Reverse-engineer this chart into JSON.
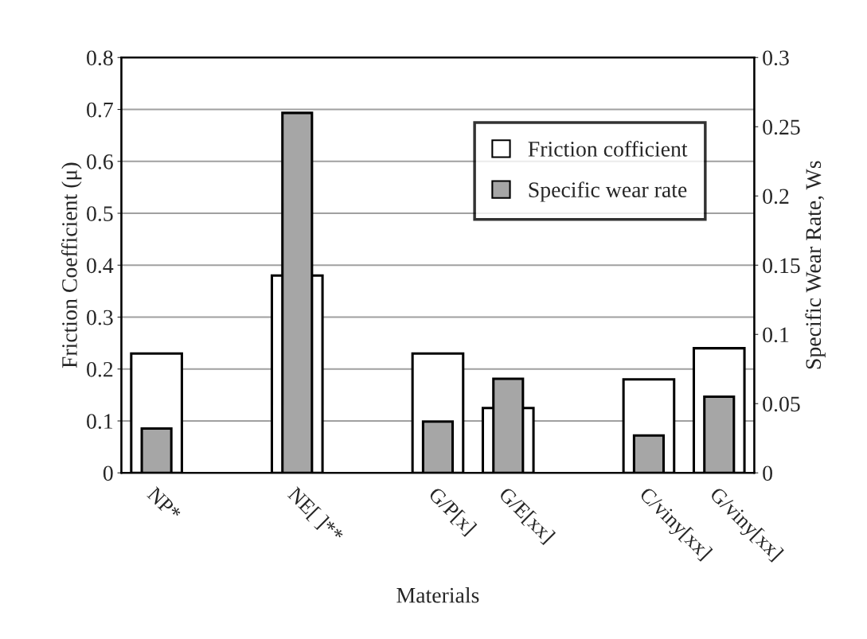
{
  "chart_data": {
    "type": "bar",
    "xlabel": "Materials",
    "ylabel": "Friction Coefficient (μ)",
    "y2label": "Specific Wear Rate, Ws",
    "categories": [
      "NP*",
      null,
      "NE[ ]**",
      null,
      "G/P[x]",
      "G/E[xx]",
      null,
      "C/viny[xx]",
      "G/viny[xx]"
    ],
    "series": [
      {
        "name": "Friction cofficient",
        "color": "#ffffff",
        "values": [
          0.23,
          null,
          0.38,
          null,
          0.23,
          0.125,
          null,
          0.18,
          0.24
        ]
      },
      {
        "name": "Specific wear rate",
        "color": "#a6a6a6",
        "axis": "y2",
        "values": [
          0.032,
          null,
          0.26,
          null,
          0.037,
          0.068,
          null,
          0.027,
          0.055
        ]
      }
    ],
    "ylim": [
      0,
      0.8
    ],
    "yticks": [
      0,
      0.1,
      0.2,
      0.3,
      0.4,
      0.5,
      0.6,
      0.7,
      0.8
    ],
    "y2lim": [
      0,
      0.3
    ],
    "y2ticks": [
      0,
      0.05,
      0.1,
      0.15,
      0.2,
      0.25,
      0.3
    ],
    "grid": "y",
    "legend": "top right"
  }
}
